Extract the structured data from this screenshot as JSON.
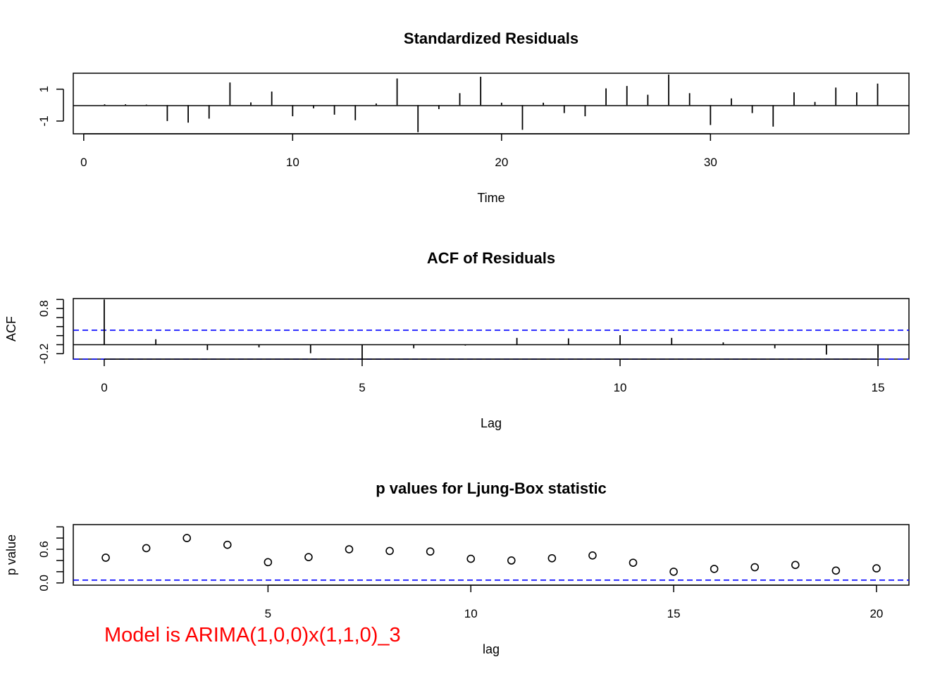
{
  "chart_data": [
    {
      "type": "bar",
      "title": "Standardized Residuals",
      "xlabel": "Time",
      "ylabel": "",
      "xlim": [
        -0.5,
        39.5
      ],
      "ylim": [
        -1.8,
        2.0
      ],
      "xticks": [
        0,
        10,
        20,
        30
      ],
      "yticks": [
        -1,
        1
      ],
      "x": [
        1,
        2,
        3,
        4,
        5,
        6,
        7,
        8,
        9,
        10,
        11,
        12,
        13,
        14,
        15,
        16,
        17,
        18,
        19,
        20,
        21,
        22,
        23,
        24,
        25,
        26,
        27,
        28,
        29,
        30,
        31,
        32,
        33,
        34,
        35,
        36,
        37,
        38
      ],
      "values": [
        0.05,
        0.05,
        0.03,
        -1.0,
        -1.1,
        -0.85,
        1.42,
        0.17,
        0.85,
        -0.7,
        -0.2,
        -0.6,
        -0.95,
        0.1,
        1.67,
        -1.7,
        -0.25,
        0.75,
        1.78,
        0.15,
        -1.55,
        0.15,
        -0.5,
        -0.7,
        1.05,
        1.2,
        0.65,
        1.92,
        0.75,
        -1.25,
        0.42,
        -0.5,
        -1.35,
        0.8,
        0.2,
        1.1,
        0.8,
        1.35
      ],
      "grid": false
    },
    {
      "type": "bar",
      "title": "ACF of Residuals",
      "xlabel": "Lag",
      "ylabel": "ACF",
      "xlim": [
        -0.6,
        15.6
      ],
      "ylim": [
        -0.32,
        1.02
      ],
      "xticks": [
        0,
        5,
        10,
        15
      ],
      "yticks": [
        -0.2,
        0,
        0.2,
        0.4,
        0.6,
        0.8,
        1.0
      ],
      "ytick_labels": [
        "-0.2",
        "",
        "",
        "",
        "",
        "0.8",
        ""
      ],
      "x": [
        0,
        1,
        2,
        3,
        4,
        5,
        6,
        7,
        8,
        9,
        10,
        11,
        12,
        13,
        14,
        15
      ],
      "values": [
        1.0,
        0.12,
        -0.12,
        -0.06,
        -0.19,
        -0.31,
        -0.08,
        -0.02,
        0.15,
        0.14,
        0.21,
        0.15,
        0.05,
        -0.08,
        -0.22,
        -0.3
      ],
      "confidence_band": 0.32,
      "band_color": "#0000ff",
      "grid": false
    },
    {
      "type": "scatter",
      "title": "p values for Ljung-Box statistic",
      "xlabel": "lag",
      "ylabel": "p value",
      "xlim": [
        0.2,
        20.8
      ],
      "ylim": [
        -0.04,
        1.04
      ],
      "xticks": [
        5,
        10,
        15,
        20
      ],
      "yticks": [
        0,
        0.2,
        0.4,
        0.6,
        0.8,
        1.0
      ],
      "ytick_labels": [
        "0.0",
        "",
        "",
        "0.6",
        "",
        ""
      ],
      "x": [
        1,
        2,
        3,
        4,
        5,
        6,
        7,
        8,
        9,
        10,
        11,
        12,
        13,
        14,
        15,
        16,
        17,
        18,
        19,
        20
      ],
      "values": [
        0.45,
        0.62,
        0.8,
        0.68,
        0.37,
        0.46,
        0.6,
        0.57,
        0.56,
        0.43,
        0.4,
        0.44,
        0.49,
        0.36,
        0.2,
        0.25,
        0.28,
        0.32,
        0.22,
        0.26
      ],
      "reference_line": 0.05,
      "reference_color": "#0000ff",
      "grid": false
    }
  ],
  "annotation": {
    "text": "Model is ARIMA(1,0,0)x(1,1,0)_3",
    "color": "#ff0000"
  }
}
